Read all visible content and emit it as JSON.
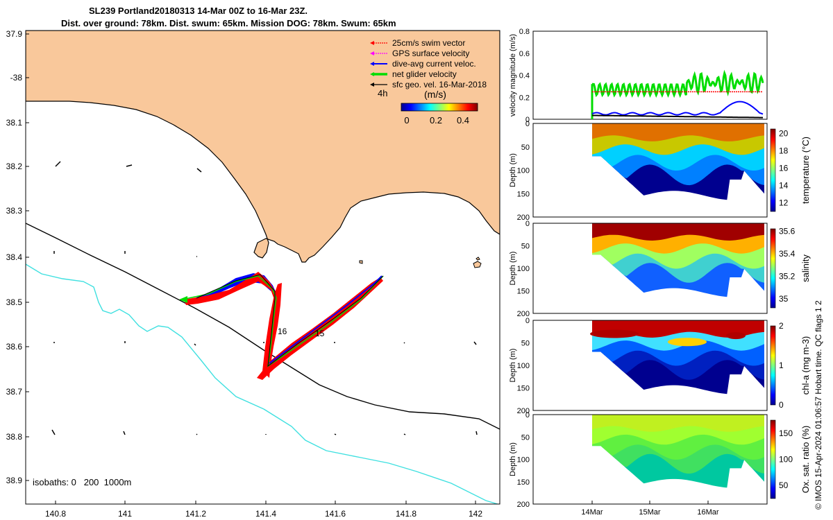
{
  "title": {
    "line1": "SL239 Portland20180313 14-Mar 00Z to 16-Mar 23Z.",
    "line2": "Dist. over ground: 78km. Dist. swum: 65km. Mission DOG: 78km. Swum: 65km"
  },
  "colors": {
    "land": "#F9C89B",
    "coast": "#000000",
    "isobath_200": "#000000",
    "isobath_1000": "#3FE0E0",
    "swim": "#FF0000",
    "gps": "#FF00FF",
    "current": "#0000FF",
    "net": "#00DD00",
    "geo": "#000000"
  },
  "map": {
    "lon_ticks": [
      "140.8",
      "141",
      "141.2",
      "141.4",
      "141.6",
      "141.8",
      "142"
    ],
    "lat_ticks": [
      "37.9",
      "-38",
      "38.1",
      "38.2",
      "38.3",
      "38.4",
      "38.5",
      "38.6",
      "38.7",
      "38.8",
      "38.9"
    ],
    "legend": [
      {
        "label": "25cm/s swim vector",
        "color": "#FF0000"
      },
      {
        "label": "GPS surface velocity",
        "color": "#FF00FF"
      },
      {
        "label": "dive-avg current veloc.",
        "color": "#0000FF"
      },
      {
        "label": "net glider velocity",
        "color": "#00DD00"
      },
      {
        "label": "sfc geo. vel. 16-Mar-2018",
        "color": "#000000"
      }
    ],
    "legend_extra": "4h",
    "colorbar_label": "(m/s)",
    "colorbar_ticks": [
      "0",
      "0.2",
      "0.4"
    ],
    "day_labels": [
      "16",
      "15"
    ],
    "isobath_note": "isobaths: 0   200  1000m"
  },
  "chart_data": [
    {
      "type": "line",
      "title": "",
      "ylabel": "velocity magnitude (m/s)",
      "ylim": [
        0,
        0.8
      ],
      "yticks": [
        "0",
        "0.2",
        "0.4",
        "0.6",
        "0.8"
      ],
      "series": [
        {
          "name": "net glider velocity",
          "approx": "0.30 oscillating 0.20-0.43"
        },
        {
          "name": "25cm/s swim vector",
          "approx": "0.25"
        },
        {
          "name": "dive-avg current veloc.",
          "approx": "0.05-0.16"
        },
        {
          "name": "sfc geo. vel.",
          "approx": "0.02-0.04"
        }
      ]
    },
    {
      "type": "heatmap",
      "ylabel": "Depth (m)",
      "yticks": [
        "0",
        "50",
        "100",
        "150",
        "200"
      ],
      "colorbar_label": "temperature (°C)",
      "colorbar_ticks": [
        "12",
        "14",
        "16",
        "18",
        "20"
      ],
      "clim": [
        11,
        20.5
      ]
    },
    {
      "type": "heatmap",
      "ylabel": "Depth (m)",
      "yticks": [
        "0",
        "50",
        "100",
        "150",
        "200"
      ],
      "colorbar_label": "salinity",
      "colorbar_ticks": [
        "35",
        "35.2",
        "35.4",
        "35.6"
      ],
      "clim": [
        34.92,
        35.62
      ]
    },
    {
      "type": "heatmap",
      "ylabel": "Depth (m)",
      "yticks": [
        "0",
        "50",
        "100",
        "150",
        "200"
      ],
      "colorbar_label": "chl-a (mg m-3)",
      "colorbar_ticks": [
        "0",
        "1",
        "2"
      ],
      "clim": [
        0,
        2
      ]
    },
    {
      "type": "heatmap",
      "ylabel": "Depth (m)",
      "yticks": [
        "0",
        "50",
        "100",
        "150",
        "200"
      ],
      "colorbar_label": "Ox. sat. ratio (%)",
      "colorbar_ticks": [
        "50",
        "100",
        "150"
      ],
      "clim": [
        25,
        175
      ]
    }
  ],
  "time_axis": {
    "labels": [
      "14Mar",
      "15Mar",
      "16Mar"
    ]
  },
  "credit": "© IMOS 15-Apr-2024 01:06:57 Hobart time. QC flags 1  2"
}
